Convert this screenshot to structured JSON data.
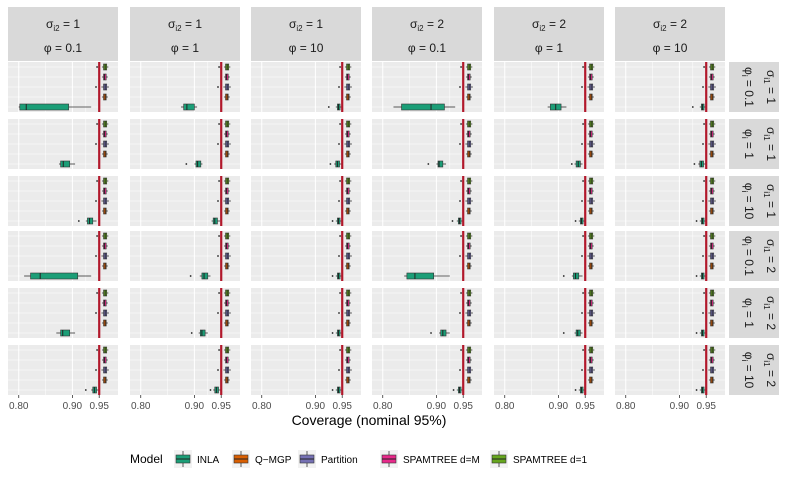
{
  "chart_data": {
    "type": "boxplot",
    "xlabel": "Coverage (nominal 95%)",
    "xlim": [
      0.78,
      0.985
    ],
    "x_ticks": [
      0.8,
      0.9,
      0.95
    ],
    "x_tick_labels": [
      "0.80",
      "0.90",
      "0.95"
    ],
    "nominal_line": 0.95,
    "nominal_color": "#b2182b",
    "legend_title": "Model",
    "models": [
      {
        "name": "INLA",
        "color": "#1b9e77"
      },
      {
        "name": "Q−MGP",
        "color": "#d95f02"
      },
      {
        "name": "Partition",
        "color": "#7570b3"
      },
      {
        "name": "SPAMTREE d=M",
        "color": "#e7298a"
      },
      {
        "name": "SPAMTREE d=1",
        "color": "#66a61e"
      }
    ],
    "col_strips": [
      {
        "sigma_label": "σ",
        "sigma_sub": "i2",
        "sigma_value": "= 1",
        "phi_label": "φ",
        "phi_value": "= 0.1"
      },
      {
        "sigma_label": "σ",
        "sigma_sub": "i2",
        "sigma_value": "= 1",
        "phi_label": "φ",
        "phi_value": "= 1"
      },
      {
        "sigma_label": "σ",
        "sigma_sub": "i2",
        "sigma_value": "= 1",
        "phi_label": "φ",
        "phi_value": "= 10"
      },
      {
        "sigma_label": "σ",
        "sigma_sub": "i2",
        "sigma_value": "= 2",
        "phi_label": "φ",
        "phi_value": "= 0.1"
      },
      {
        "sigma_label": "σ",
        "sigma_sub": "i2",
        "sigma_value": "= 2",
        "phi_label": "φ",
        "phi_value": "= 1"
      },
      {
        "sigma_label": "σ",
        "sigma_sub": "i2",
        "sigma_value": "= 2",
        "phi_label": "φ",
        "phi_value": "= 10"
      }
    ],
    "row_strips": [
      {
        "phi_text": "φ",
        "phi_sub": "i",
        "phi_value": "= 0.1",
        "sigma_text": "σ",
        "sigma_sub": "i1",
        "sigma_value": "= 1"
      },
      {
        "phi_text": "φ",
        "phi_sub": "i",
        "phi_value": "= 1",
        "sigma_text": "σ",
        "sigma_sub": "i1",
        "sigma_value": "= 1"
      },
      {
        "phi_text": "φ",
        "phi_sub": "i",
        "phi_value": "= 10",
        "sigma_text": "σ",
        "sigma_sub": "i1",
        "sigma_value": "= 1"
      },
      {
        "phi_text": "φ",
        "phi_sub": "i",
        "phi_value": "= 0.1",
        "sigma_text": "σ",
        "sigma_sub": "i1",
        "sigma_value": "= 2"
      },
      {
        "phi_text": "φ",
        "phi_sub": "i",
        "phi_value": "= 1",
        "sigma_text": "σ",
        "sigma_sub": "i1",
        "sigma_value": "= 2"
      },
      {
        "phi_text": "φ",
        "phi_sub": "i",
        "phi_value": "= 10",
        "sigma_text": "σ",
        "sigma_sub": "i1",
        "sigma_value": "= 2"
      }
    ],
    "default_boxes": [
      {
        "model": "SPAMTREE d=1",
        "min": 0.955,
        "q1": 0.958,
        "med": 0.961,
        "q3": 0.964,
        "max": 0.967,
        "outliers": [
          0.946
        ]
      },
      {
        "model": "SPAMTREE d=M",
        "min": 0.955,
        "q1": 0.958,
        "med": 0.96,
        "q3": 0.963,
        "max": 0.966,
        "outliers": []
      },
      {
        "model": "Partition",
        "min": 0.954,
        "q1": 0.958,
        "med": 0.961,
        "q3": 0.964,
        "max": 0.968,
        "outliers": [
          0.944
        ]
      },
      {
        "model": "Q−MGP",
        "min": 0.955,
        "q1": 0.958,
        "med": 0.961,
        "q3": 0.963,
        "max": 0.966,
        "outliers": []
      },
      {
        "model": "INLA",
        "min": 0.938,
        "q1": 0.941,
        "med": 0.944,
        "q3": 0.947,
        "max": 0.95,
        "outliers": [
          0.932
        ]
      }
    ],
    "inla_boxes": [
      [
        {
          "min": 0.8,
          "q1": 0.802,
          "med": 0.814,
          "q3": 0.893,
          "max": 0.935,
          "outliers": []
        },
        {
          "min": 0.875,
          "q1": 0.88,
          "med": 0.886,
          "q3": 0.9,
          "max": 0.905,
          "outliers": []
        },
        {
          "min": 0.938,
          "q1": 0.941,
          "med": 0.943,
          "q3": 0.946,
          "max": 0.95,
          "outliers": [
            0.925
          ]
        },
        {
          "min": 0.82,
          "q1": 0.835,
          "med": 0.89,
          "q3": 0.915,
          "max": 0.935,
          "outliers": []
        },
        {
          "min": 0.88,
          "q1": 0.885,
          "med": 0.895,
          "q3": 0.905,
          "max": 0.915,
          "outliers": []
        },
        {
          "min": 0.938,
          "q1": 0.941,
          "med": 0.943,
          "q3": 0.946,
          "max": 0.95,
          "outliers": [
            0.925
          ]
        }
      ],
      [
        {
          "min": 0.875,
          "q1": 0.878,
          "med": 0.883,
          "q3": 0.895,
          "max": 0.905,
          "outliers": []
        },
        {
          "min": 0.9,
          "q1": 0.903,
          "med": 0.906,
          "q3": 0.912,
          "max": 0.915,
          "outliers": [
            0.885
          ]
        },
        {
          "min": 0.935,
          "q1": 0.938,
          "med": 0.941,
          "q3": 0.945,
          "max": 0.95,
          "outliers": [
            0.928
          ]
        },
        {
          "min": 0.9,
          "q1": 0.903,
          "med": 0.905,
          "q3": 0.912,
          "max": 0.918,
          "outliers": [
            0.885
          ]
        },
        {
          "min": 0.93,
          "q1": 0.933,
          "med": 0.937,
          "q3": 0.941,
          "max": 0.945,
          "outliers": [
            0.925
          ]
        },
        {
          "min": 0.935,
          "q1": 0.938,
          "med": 0.941,
          "q3": 0.945,
          "max": 0.95,
          "outliers": [
            0.928
          ]
        }
      ],
      [
        {
          "min": 0.925,
          "q1": 0.928,
          "med": 0.932,
          "q3": 0.938,
          "max": 0.945,
          "outliers": [
            0.912
          ]
        },
        {
          "min": 0.932,
          "q1": 0.935,
          "med": 0.938,
          "q3": 0.943,
          "max": 0.948,
          "outliers": []
        },
        {
          "min": 0.938,
          "q1": 0.941,
          "med": 0.943,
          "q3": 0.946,
          "max": 0.95,
          "outliers": [
            0.932
          ]
        },
        {
          "min": 0.938,
          "q1": 0.941,
          "med": 0.943,
          "q3": 0.946,
          "max": 0.95,
          "outliers": [
            0.93
          ]
        },
        {
          "min": 0.938,
          "q1": 0.941,
          "med": 0.943,
          "q3": 0.946,
          "max": 0.95,
          "outliers": [
            0.932
          ]
        },
        {
          "min": 0.938,
          "q1": 0.941,
          "med": 0.943,
          "q3": 0.946,
          "max": 0.95,
          "outliers": [
            0.932
          ]
        }
      ],
      [
        {
          "min": 0.81,
          "q1": 0.822,
          "med": 0.84,
          "q3": 0.91,
          "max": 0.935,
          "outliers": []
        },
        {
          "min": 0.91,
          "q1": 0.914,
          "med": 0.918,
          "q3": 0.925,
          "max": 0.93,
          "outliers": [
            0.893
          ]
        },
        {
          "min": 0.938,
          "q1": 0.941,
          "med": 0.943,
          "q3": 0.946,
          "max": 0.95,
          "outliers": [
            0.932
          ]
        },
        {
          "min": 0.84,
          "q1": 0.845,
          "med": 0.86,
          "q3": 0.895,
          "max": 0.925,
          "outliers": []
        },
        {
          "min": 0.925,
          "q1": 0.928,
          "med": 0.932,
          "q3": 0.938,
          "max": 0.945,
          "outliers": [
            0.91
          ]
        },
        {
          "min": 0.938,
          "q1": 0.941,
          "med": 0.943,
          "q3": 0.946,
          "max": 0.95,
          "outliers": [
            0.932
          ]
        }
      ],
      [
        {
          "min": 0.87,
          "q1": 0.878,
          "med": 0.882,
          "q3": 0.895,
          "max": 0.905,
          "outliers": []
        },
        {
          "min": 0.908,
          "q1": 0.911,
          "med": 0.914,
          "q3": 0.92,
          "max": 0.925,
          "outliers": [
            0.895
          ]
        },
        {
          "min": 0.938,
          "q1": 0.941,
          "med": 0.943,
          "q3": 0.946,
          "max": 0.95,
          "outliers": [
            0.932
          ]
        },
        {
          "min": 0.905,
          "q1": 0.908,
          "med": 0.912,
          "q3": 0.918,
          "max": 0.925,
          "outliers": [
            0.89
          ]
        },
        {
          "min": 0.93,
          "q1": 0.933,
          "med": 0.936,
          "q3": 0.941,
          "max": 0.945,
          "outliers": [
            0.91
          ]
        },
        {
          "min": 0.938,
          "q1": 0.941,
          "med": 0.943,
          "q3": 0.946,
          "max": 0.95,
          "outliers": [
            0.932
          ]
        }
      ],
      [
        {
          "min": 0.935,
          "q1": 0.938,
          "med": 0.941,
          "q3": 0.945,
          "max": 0.95,
          "outliers": [
            0.925
          ]
        },
        {
          "min": 0.935,
          "q1": 0.938,
          "med": 0.941,
          "q3": 0.945,
          "max": 0.95,
          "outliers": [
            0.93
          ]
        },
        {
          "min": 0.938,
          "q1": 0.941,
          "med": 0.943,
          "q3": 0.946,
          "max": 0.95,
          "outliers": [
            0.932
          ]
        },
        {
          "min": 0.938,
          "q1": 0.941,
          "med": 0.943,
          "q3": 0.946,
          "max": 0.95,
          "outliers": [
            0.932
          ]
        },
        {
          "min": 0.938,
          "q1": 0.941,
          "med": 0.943,
          "q3": 0.946,
          "max": 0.95,
          "outliers": [
            0.932
          ]
        },
        {
          "min": 0.938,
          "q1": 0.941,
          "med": 0.943,
          "q3": 0.946,
          "max": 0.95,
          "outliers": [
            0.932
          ]
        }
      ]
    ]
  }
}
